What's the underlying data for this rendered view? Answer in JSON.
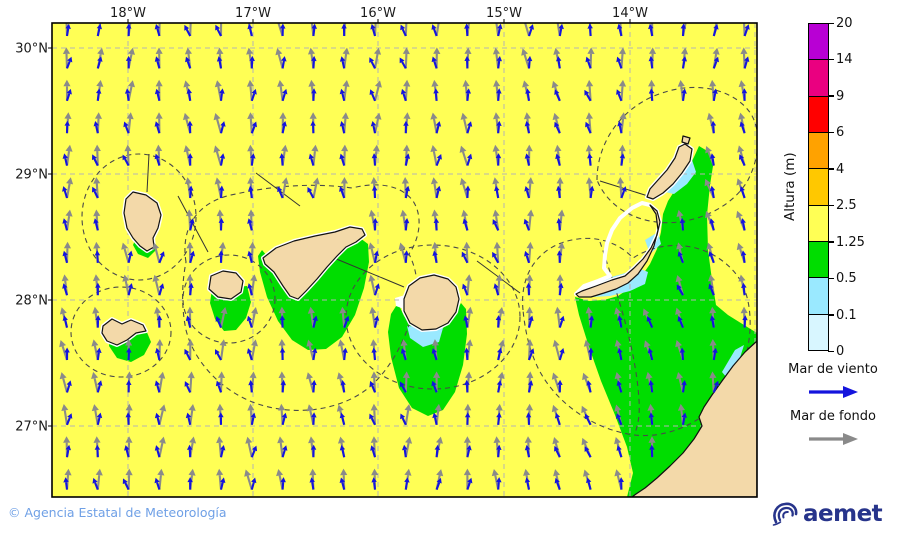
{
  "map": {
    "top_axis_labels": [
      "18°W",
      "17°W",
      "16°W",
      "15°W",
      "14°W"
    ],
    "left_axis_labels": [
      "30°N",
      "29°N",
      "28°N",
      "27°N"
    ],
    "sea_color": "#ffff55",
    "wave_green": "#00dd00",
    "wave_cyan": "#9ae9ff",
    "wave_pale": "#d8f6ff",
    "land_color": "#f3d9a9",
    "arrows": {
      "wind_color": "#1414dd",
      "swell_color": "#8a8a8a"
    }
  },
  "colorbar": {
    "title": "Altura (m)",
    "levels": [
      "20",
      "14",
      "9",
      "6",
      "4",
      "2.5",
      "1.25",
      "0.5",
      "0.1",
      "0"
    ],
    "colors": [
      "#b800d4",
      "#ea0080",
      "#ff0000",
      "#ffa200",
      "#ffc800",
      "#ffff55",
      "#00dd00",
      "#9ae9ff",
      "#d8f6ff"
    ]
  },
  "legend": {
    "wind_label": "Mar de viento",
    "swell_label": "Mar de fondo"
  },
  "footer": {
    "copyright": "© Agencia Estatal de Meteorología",
    "brand": "aemet"
  }
}
